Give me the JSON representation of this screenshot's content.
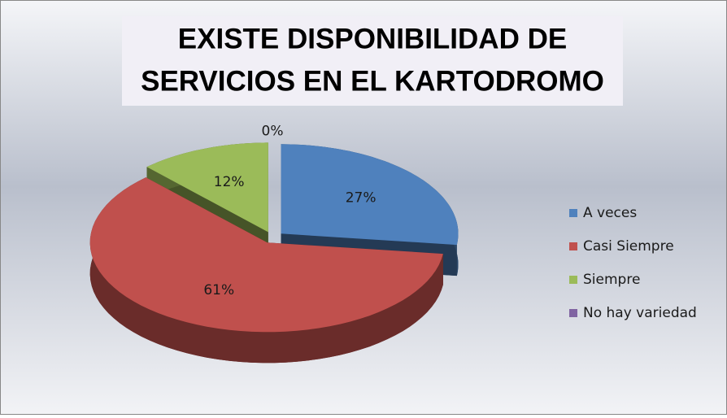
{
  "chart_data": {
    "type": "pie",
    "title": [
      "EXISTE DISPONIBILIDAD DE",
      "SERVICIOS EN EL KARTODROMO"
    ],
    "categories": [
      "A veces",
      "Casi Siempre",
      "Siempre",
      "No hay variedad"
    ],
    "values": [
      27,
      61,
      12,
      0
    ],
    "value_labels": [
      "27%",
      "61%",
      "12%",
      "0%"
    ],
    "colors": [
      "#4f81bd",
      "#c0504d",
      "#9bbb59",
      "#8064a2"
    ],
    "legend": "right"
  }
}
